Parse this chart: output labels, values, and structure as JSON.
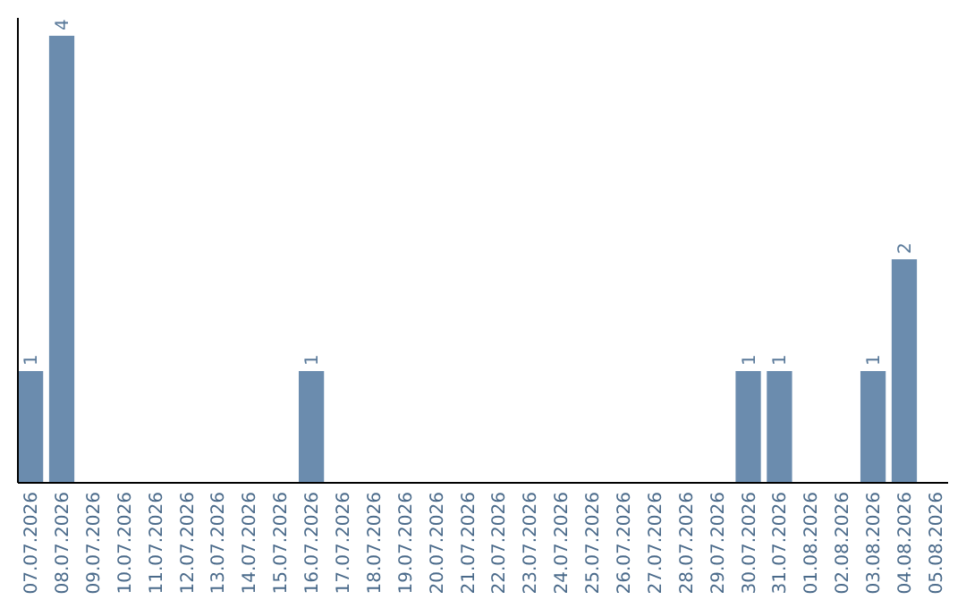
{
  "chart_data": {
    "type": "bar",
    "categories": [
      "07.07.2026",
      "08.07.2026",
      "09.07.2026",
      "10.07.2026",
      "11.07.2026",
      "12.07.2026",
      "13.07.2026",
      "14.07.2026",
      "15.07.2026",
      "16.07.2026",
      "17.07.2026",
      "18.07.2026",
      "19.07.2026",
      "20.07.2026",
      "21.07.2026",
      "22.07.2026",
      "23.07.2026",
      "24.07.2026",
      "25.07.2026",
      "26.07.2026",
      "27.07.2026",
      "28.07.2026",
      "29.07.2026",
      "30.07.2026",
      "31.07.2026",
      "01.08.2026",
      "02.08.2026",
      "03.08.2026",
      "04.08.2026",
      "05.08.2026"
    ],
    "values": [
      1,
      4,
      0,
      0,
      0,
      0,
      0,
      0,
      0,
      1,
      0,
      0,
      0,
      0,
      0,
      0,
      0,
      0,
      0,
      0,
      0,
      0,
      0,
      1,
      1,
      0,
      0,
      1,
      2,
      0
    ],
    "value_labels": [
      "1",
      "4",
      null,
      null,
      null,
      null,
      null,
      null,
      null,
      "1",
      null,
      null,
      null,
      null,
      null,
      null,
      null,
      null,
      null,
      null,
      null,
      null,
      null,
      "1",
      "1",
      null,
      null,
      "1",
      "2",
      null
    ],
    "color": "#6b8cae"
  }
}
